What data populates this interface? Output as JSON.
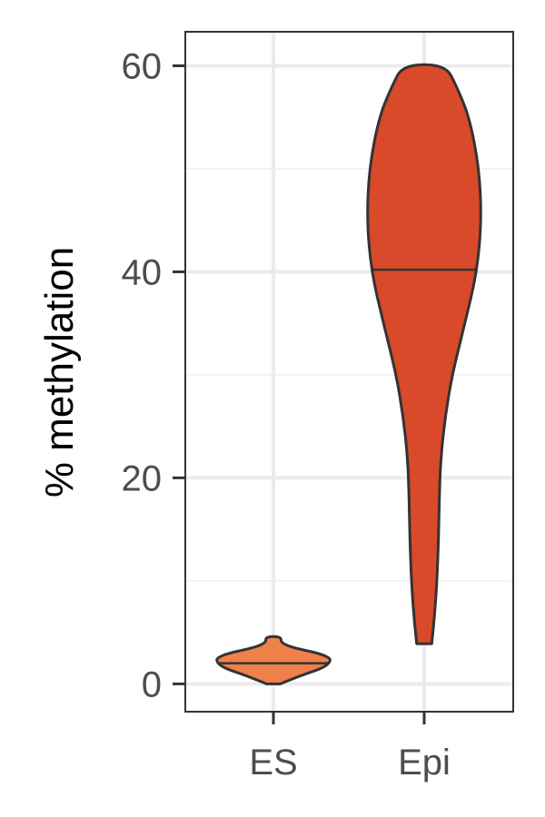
{
  "chart_data": {
    "type": "violin",
    "ylabel": "% methylation",
    "xlabel": "",
    "categories": [
      "ES",
      "Epi"
    ],
    "ylim": [
      -2.7,
      63.3
    ],
    "yticks": [
      0,
      20,
      40,
      60
    ],
    "ytick_labels": [
      "0",
      "20",
      "40",
      "60"
    ],
    "minor_gridlines": [
      10,
      30,
      50
    ],
    "grid": true,
    "groups": [
      {
        "name": "ES",
        "color": "#f0804a",
        "median": 2.0,
        "min": 0.0,
        "max": 4.6,
        "profile": [
          [
            0.0,
            0.09
          ],
          [
            0.5,
            0.26
          ],
          [
            1.0,
            0.44
          ],
          [
            1.5,
            0.64
          ],
          [
            2.0,
            0.74
          ],
          [
            2.5,
            0.76
          ],
          [
            3.0,
            0.59
          ],
          [
            3.5,
            0.26
          ],
          [
            4.0,
            0.1
          ],
          [
            4.6,
            0.1
          ]
        ]
      },
      {
        "name": "Epi",
        "color": "#d84a2a",
        "median": 40.2,
        "min": 3.9,
        "max": 60.1,
        "profile": [
          [
            3.9,
            0.1
          ],
          [
            6,
            0.13
          ],
          [
            10,
            0.17
          ],
          [
            14,
            0.19
          ],
          [
            18,
            0.2
          ],
          [
            22,
            0.22
          ],
          [
            26,
            0.28
          ],
          [
            30,
            0.37
          ],
          [
            35,
            0.54
          ],
          [
            40,
            0.7
          ],
          [
            45,
            0.76
          ],
          [
            50,
            0.73
          ],
          [
            55,
            0.6
          ],
          [
            58,
            0.43
          ],
          [
            60.1,
            0.28
          ]
        ]
      }
    ]
  },
  "colors": {
    "panel_border": "#333333",
    "grid_major": "#ebebeb",
    "grid_minor": "#f2f2f2",
    "outline": "#333333"
  }
}
